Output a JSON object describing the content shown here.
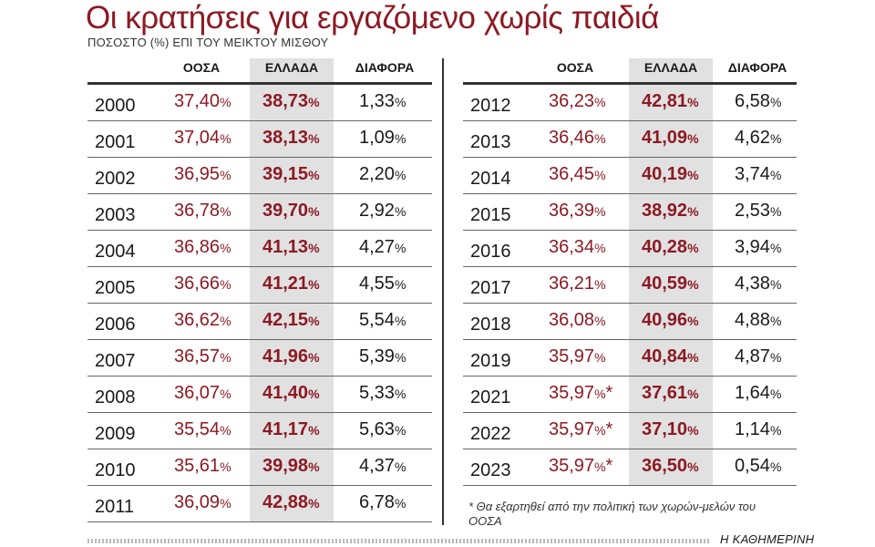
{
  "title": "Οι κρατήσεις για εργαζόμενο χωρίς παιδιά",
  "subtitle": "ΠΟΣΟΣΤΟ (%) ΕΠΙ ΤΟΥ ΜΕΙΚΤΟΥ ΜΙΣΘΟΥ",
  "headers": {
    "oosa": "ΟΟΣΑ",
    "ellada": "ΕΛΛΑΔΑ",
    "diafora": "ΔΙΑΦΟΡΑ"
  },
  "pct": "%",
  "star": "*",
  "left_rows": [
    {
      "year": "2000",
      "oosa": "37,40",
      "ellada": "38,73",
      "diafora": "1,33"
    },
    {
      "year": "2001",
      "oosa": "37,04",
      "ellada": "38,13",
      "diafora": "1,09"
    },
    {
      "year": "2002",
      "oosa": "36,95",
      "ellada": "39,15",
      "diafora": "2,20"
    },
    {
      "year": "2003",
      "oosa": "36,78",
      "ellada": "39,70",
      "diafora": "2,92"
    },
    {
      "year": "2004",
      "oosa": "36,86",
      "ellada": "41,13",
      "diafora": "4,27"
    },
    {
      "year": "2005",
      "oosa": "36,66",
      "ellada": "41,21",
      "diafora": "4,55"
    },
    {
      "year": "2006",
      "oosa": "36,62",
      "ellada": "42,15",
      "diafora": "5,54"
    },
    {
      "year": "2007",
      "oosa": "36,57",
      "ellada": "41,96",
      "diafora": "5,39"
    },
    {
      "year": "2008",
      "oosa": "36,07",
      "ellada": "41,40",
      "diafora": "5,33"
    },
    {
      "year": "2009",
      "oosa": "35,54",
      "ellada": "41,17",
      "diafora": "5,63"
    },
    {
      "year": "2010",
      "oosa": "35,61",
      "ellada": "39,98",
      "diafora": "4,37"
    },
    {
      "year": "2011",
      "oosa": "36,09",
      "ellada": "42,88",
      "diafora": "6,78"
    }
  ],
  "right_rows": [
    {
      "year": "2012",
      "oosa": "36,23",
      "ellada": "42,81",
      "diafora": "6,58",
      "star": false
    },
    {
      "year": "2013",
      "oosa": "36,46",
      "ellada": "41,09",
      "diafora": "4,62",
      "star": false
    },
    {
      "year": "2014",
      "oosa": "36,45",
      "ellada": "40,19",
      "diafora": "3,74",
      "star": false
    },
    {
      "year": "2015",
      "oosa": "36,39",
      "ellada": "38,92",
      "diafora": "2,53",
      "star": false
    },
    {
      "year": "2016",
      "oosa": "36,34",
      "ellada": "40,28",
      "diafora": "3,94",
      "star": false
    },
    {
      "year": "2017",
      "oosa": "36,21",
      "ellada": "40,59",
      "diafora": "4,38",
      "star": false
    },
    {
      "year": "2018",
      "oosa": "36,08",
      "ellada": "40,96",
      "diafora": "4,88",
      "star": false
    },
    {
      "year": "2019",
      "oosa": "35,97",
      "ellada": "40,84",
      "diafora": "4,87",
      "star": false
    },
    {
      "year": "2021",
      "oosa": "35,97",
      "ellada": "37,61",
      "diafora": "1,64",
      "star": true
    },
    {
      "year": "2022",
      "oosa": "35,97",
      "ellada": "37,10",
      "diafora": "1,14",
      "star": true
    },
    {
      "year": "2023",
      "oosa": "35,97",
      "ellada": "36,50",
      "diafora": "0,54",
      "star": true
    }
  ],
  "note": "* Θα εξαρτηθεί από την πολιτική των χωρών-μελών του ΟΟΣΑ",
  "brand": "Η ΚΑΘΗΜΕΡΙΝΗ"
}
